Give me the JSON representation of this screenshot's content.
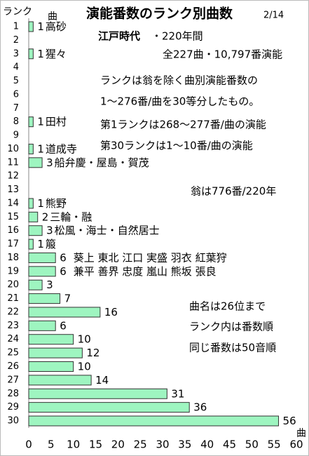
{
  "chart_data": {
    "type": "barh",
    "title": "演能番数のランク別曲数",
    "subtitle": "2/14",
    "y_label": "ランク",
    "y_unit": "曲",
    "x_label": "曲",
    "categories": [
      "1",
      "2",
      "3",
      "4",
      "5",
      "6",
      "7",
      "8",
      "9",
      "10",
      "11",
      "12",
      "13",
      "14",
      "15",
      "16",
      "17",
      "18",
      "19",
      "20",
      "21",
      "22",
      "23",
      "24",
      "25",
      "26",
      "27",
      "28",
      "29",
      "30"
    ],
    "values": [
      1,
      null,
      1,
      null,
      null,
      null,
      null,
      1,
      null,
      1,
      3,
      null,
      null,
      1,
      2,
      3,
      1,
      6,
      6,
      3,
      7,
      16,
      6,
      10,
      12,
      10,
      14,
      31,
      36,
      56
    ],
    "names": [
      "高砂",
      null,
      "猩々",
      null,
      null,
      null,
      null,
      "田村",
      null,
      "道成寺",
      "船弁慶・屋島・賀茂",
      null,
      null,
      "熊野",
      "三輪・融",
      "松風・海士・自然居士",
      "箙",
      "葵上 東北 江口 実盛 羽衣 紅葉狩",
      "兼平 善界 忠度 嵐山 熊坂 張良",
      null,
      null,
      null,
      null,
      null,
      null,
      null,
      null,
      null,
      null,
      null
    ],
    "color": "#9ef5c0",
    "xlim": [
      0,
      60
    ],
    "xticks": [
      0,
      5,
      10,
      15,
      20,
      25,
      30,
      35,
      40,
      45,
      50,
      55,
      60
    ],
    "annotations": [
      "江戸時代",
      "・220年間",
      "全227曲・10,797番演能",
      "ランクは翁を除く曲別演能番数の",
      "1～276番/曲を30等分したもの。",
      "第1ランクは268～277番/曲の演能",
      "第30ランクは1～10番/曲の演能",
      "翁は776番/220年",
      "曲名は26位まで",
      "ランク内は番数順",
      "同じ番数は50音順"
    ]
  }
}
